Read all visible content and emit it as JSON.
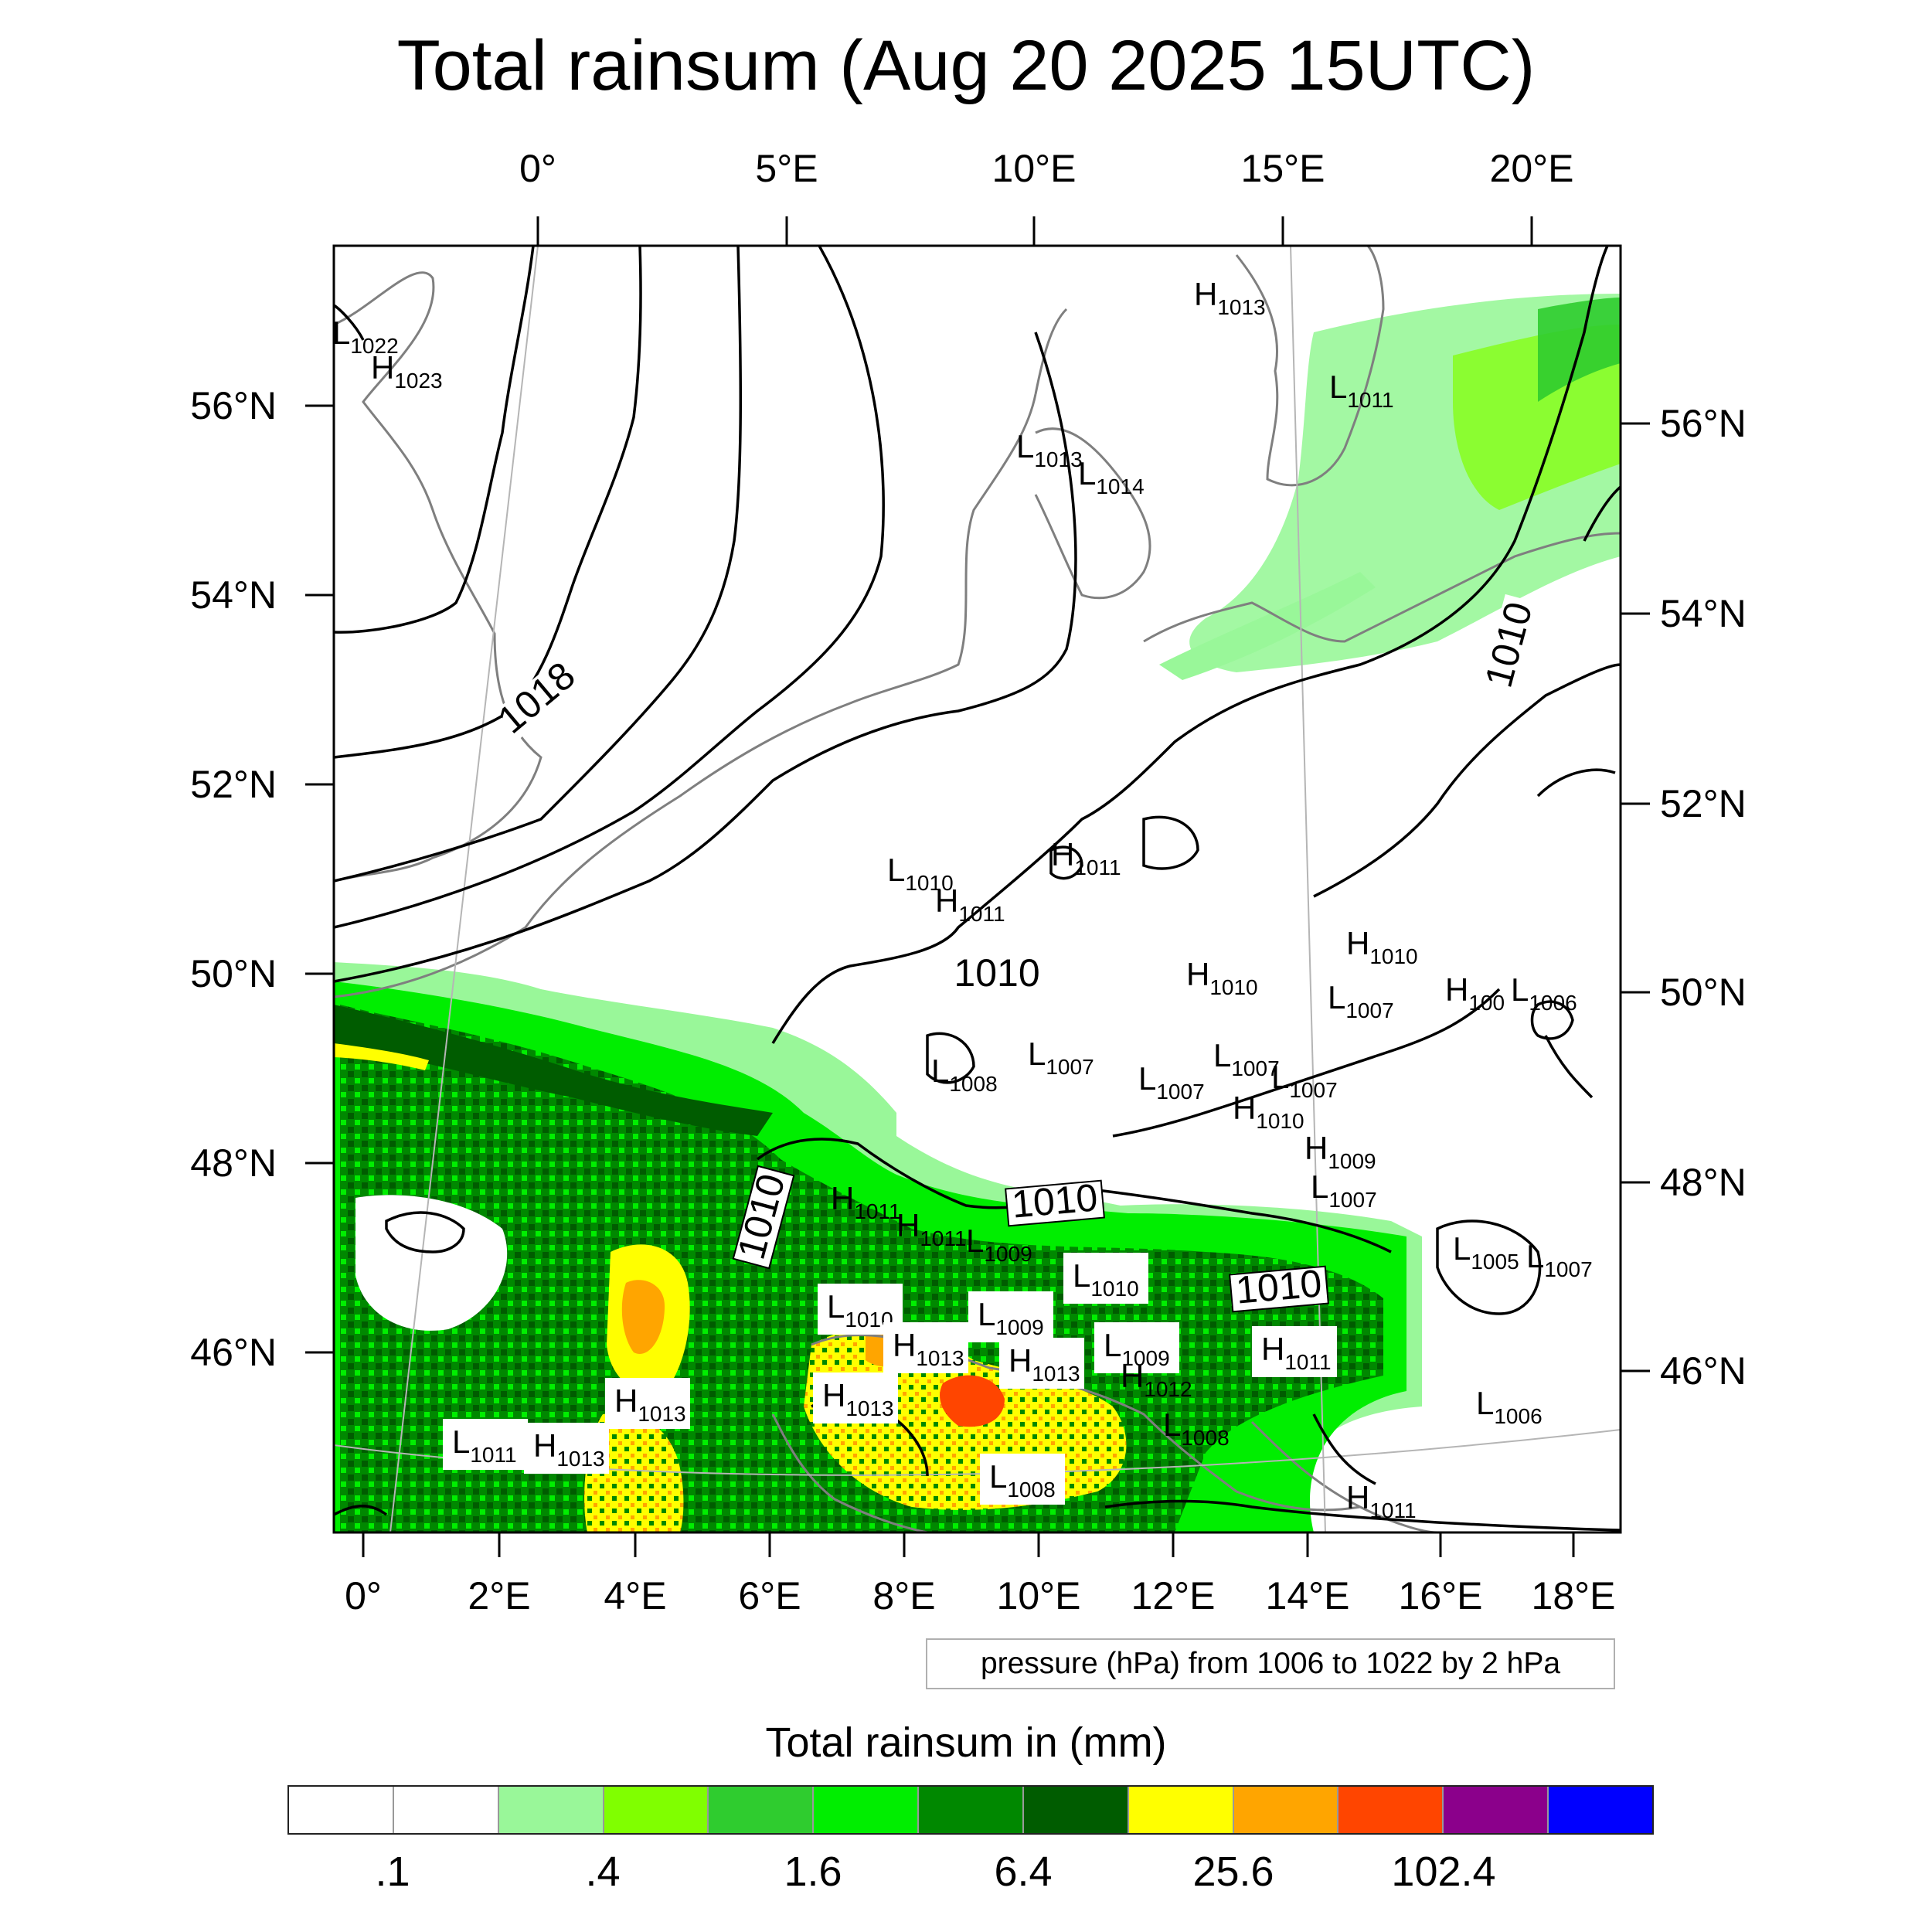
{
  "title": "Total rainsum (Aug 20 2025 15UTC)",
  "pressure_note": "pressure (hPa) from 1006 to 1022 by 2 hPa",
  "colorbar": {
    "title": "Total rainsum in (mm)",
    "colors": [
      "#ffffff",
      "#ffffff",
      "#99f799",
      "#80ff00",
      "#2fcc2f",
      "#00ee00",
      "#008800",
      "#005c00",
      "#ffff00",
      "#ffa500",
      "#ff4500",
      "#8b008b",
      "#0000ff"
    ],
    "labels": [
      ".1",
      ".4",
      "1.6",
      "6.4",
      "25.6",
      "102.4"
    ]
  },
  "axes": {
    "top_lon": [
      "0°",
      "5°E",
      "10°E",
      "15°E",
      "20°E"
    ],
    "bottom_lon": [
      "0°",
      "2°E",
      "4°E",
      "6°E",
      "8°E",
      "10°E",
      "12°E",
      "14°E",
      "16°E",
      "18°E"
    ],
    "left_lat": [
      "56°N",
      "54°N",
      "52°N",
      "50°N",
      "48°N",
      "46°N"
    ],
    "right_lat": [
      "56°N",
      "54°N",
      "52°N",
      "50°N",
      "48°N",
      "46°N"
    ]
  },
  "isobar_labels": [
    "1018",
    "1010",
    "1010",
    "1010",
    "1010",
    "1010"
  ],
  "pressure_centers": [
    {
      "type": "L",
      "value": "1022"
    },
    {
      "type": "H",
      "value": "1023"
    },
    {
      "type": "H",
      "value": "1013"
    },
    {
      "type": "L",
      "value": "1011"
    },
    {
      "type": "L",
      "value": "1013"
    },
    {
      "type": "L",
      "value": "1014"
    },
    {
      "type": "L",
      "value": "1010"
    },
    {
      "type": "H",
      "value": "1011"
    },
    {
      "type": "H",
      "value": "1011"
    },
    {
      "type": "H",
      "value": "1010"
    },
    {
      "type": "H",
      "value": "1010"
    },
    {
      "type": "L",
      "value": "1007"
    },
    {
      "type": "H",
      "value": "100"
    },
    {
      "type": "L",
      "value": "1006"
    },
    {
      "type": "L",
      "value": "1008"
    },
    {
      "type": "L",
      "value": "1007"
    },
    {
      "type": "L",
      "value": "1007"
    },
    {
      "type": "L",
      "value": "1007"
    },
    {
      "type": "L",
      "value": "1007"
    },
    {
      "type": "H",
      "value": "1010"
    },
    {
      "type": "H",
      "value": "1009"
    },
    {
      "type": "L",
      "value": "1007"
    },
    {
      "type": "L",
      "value": "1009"
    },
    {
      "type": "H",
      "value": "1011"
    },
    {
      "type": "H",
      "value": "1011"
    },
    {
      "type": "L",
      "value": "1010"
    },
    {
      "type": "L",
      "value": "1005"
    },
    {
      "type": "L",
      "value": "1007"
    },
    {
      "type": "L",
      "value": "1010"
    },
    {
      "type": "L",
      "value": "1009"
    },
    {
      "type": "H",
      "value": "1013"
    },
    {
      "type": "H",
      "value": "1013"
    },
    {
      "type": "L",
      "value": "1009"
    },
    {
      "type": "H",
      "value": "1012"
    },
    {
      "type": "H",
      "value": "1011"
    },
    {
      "type": "H",
      "value": "1013"
    },
    {
      "type": "H",
      "value": "1013"
    },
    {
      "type": "L",
      "value": "1008"
    },
    {
      "type": "L",
      "value": "1006"
    },
    {
      "type": "L",
      "value": "1011"
    },
    {
      "type": "H",
      "value": "1013"
    },
    {
      "type": "L",
      "value": "1008"
    },
    {
      "type": "H",
      "value": "1011"
    }
  ]
}
